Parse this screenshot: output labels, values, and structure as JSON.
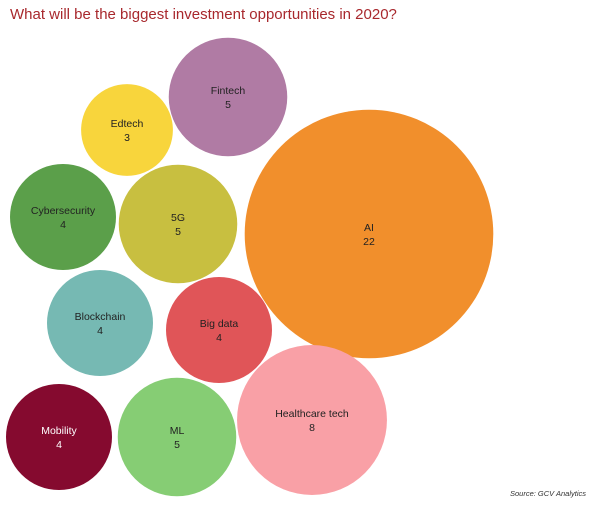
{
  "chart_data": {
    "type": "bubble",
    "title": "What will be the biggest investment opportunities in 2020?",
    "source": "Source: GCV Analytics",
    "points": [
      {
        "label": "Fintech",
        "value": 5,
        "color": "#b07ba4"
      },
      {
        "label": "Edtech",
        "value": 3,
        "color": "#f8d53c"
      },
      {
        "label": "Cybersecurity",
        "value": 4,
        "color": "#5b9f4a"
      },
      {
        "label": "5G",
        "value": 5,
        "color": "#c8bf40"
      },
      {
        "label": "AI",
        "value": 22,
        "color": "#f18f2c"
      },
      {
        "label": "Blockchain",
        "value": 4,
        "color": "#76b9b3"
      },
      {
        "label": "Big data",
        "value": 4,
        "color": "#e05558"
      },
      {
        "label": "Healthcare tech",
        "value": 8,
        "color": "#f9a0a6"
      },
      {
        "label": "Mobility",
        "value": 4,
        "color": "#850a2f"
      },
      {
        "label": "ML",
        "value": 5,
        "color": "#86cd74"
      }
    ]
  }
}
